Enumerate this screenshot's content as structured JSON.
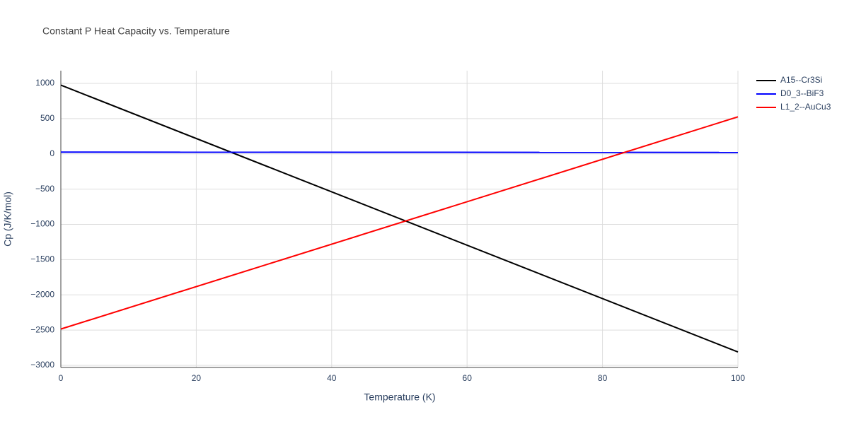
{
  "chart_data": {
    "type": "line",
    "title": "Constant P Heat Capacity vs. Temperature",
    "x_label": "Temperature (K)",
    "y_label": "Cp (J/K/mol)",
    "x": [
      0,
      100
    ],
    "series": [
      {
        "name": "A15--Cr3Si",
        "color": "#000000",
        "values": [
          975,
          -2810
        ]
      },
      {
        "name": "D0_3--BiF3",
        "color": "#0000ff",
        "values": [
          25,
          20
        ]
      },
      {
        "name": "L1_2--AuCu3",
        "color": "#ff0000",
        "values": [
          -2485,
          525
        ]
      }
    ],
    "xlim": [
      0,
      100
    ],
    "xticks": [
      0,
      20,
      40,
      60,
      80,
      100
    ],
    "ylim": [
      -3030,
      1180
    ],
    "yticks": [
      {
        "value": -3000,
        "label": "−3000"
      },
      {
        "value": -2500,
        "label": "−2500"
      },
      {
        "value": -2000,
        "label": "−2000"
      },
      {
        "value": -1500,
        "label": "−1500"
      },
      {
        "value": -1000,
        "label": "−1000"
      },
      {
        "value": -500,
        "label": "−500"
      },
      0,
      500,
      1000
    ],
    "grid": true,
    "legend": "right"
  }
}
